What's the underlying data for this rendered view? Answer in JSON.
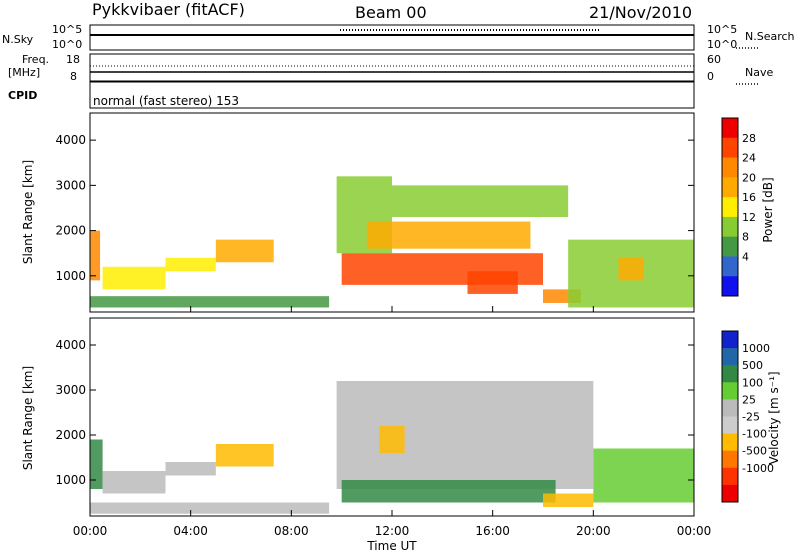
{
  "header": {
    "radar": "Pykkvibaer (fitACF)",
    "beam": "Beam 00",
    "date": "21/Nov/2010"
  },
  "nsky_panel": {
    "left_label": "N.Sky",
    "left_ticks": [
      "10^5",
      "10^0"
    ],
    "right_label": "N.Search",
    "right_ticks": [
      "10^5",
      "10^0"
    ]
  },
  "freq_panel": {
    "left_label_1": "Freq.",
    "left_label_2": "[MHz]",
    "left_ticks": [
      "18",
      "8"
    ],
    "right_label": "Nave",
    "right_ticks": [
      "60",
      "0"
    ]
  },
  "cpid": {
    "label": "CPID",
    "value": "normal (fast stereo) 153"
  },
  "x_axis": {
    "label": "Time UT",
    "ticks": [
      "00:00",
      "04:00",
      "08:00",
      "12:00",
      "16:00",
      "20:00",
      "00:00"
    ]
  },
  "power_colorbar": {
    "label": "Power [dB]",
    "ticks": [
      "28",
      "24",
      "20",
      "16",
      "12",
      "8",
      "4"
    ],
    "colors": [
      "#ee0000",
      "#ff4400",
      "#ff8800",
      "#ffaa00",
      "#ffee00",
      "#88cc33",
      "#449944",
      "#3366cc",
      "#1111ee"
    ]
  },
  "velocity_colorbar": {
    "label": "Velocity  [m s⁻¹]",
    "ticks": [
      "1000",
      "500",
      "100",
      "25",
      "-25",
      "-100",
      "-500",
      "-1000"
    ],
    "colors": [
      "#1122cc",
      "#2266aa",
      "#338844",
      "#66cc33",
      "#bbbbbb",
      "#cccccc",
      "#ffbb00",
      "#ff7700",
      "#ff3300",
      "#ee0000"
    ]
  },
  "chart_data": [
    {
      "type": "heatmap",
      "title": "",
      "xlabel": "Time UT",
      "ylabel": "Slant Range [km]",
      "xlim": [
        0,
        24
      ],
      "ylim": [
        200,
        4600
      ],
      "yticks": [
        "1000",
        "2000",
        "3000",
        "4000"
      ],
      "colorbar_label": "Power [dB]",
      "regions": [
        {
          "t0": 0.0,
          "t1": 0.4,
          "r0": 900,
          "r1": 2000,
          "value": 24
        },
        {
          "t0": 0.5,
          "t1": 3.0,
          "r0": 700,
          "r1": 1200,
          "value": 14
        },
        {
          "t0": 3.0,
          "t1": 5.0,
          "r0": 1100,
          "r1": 1400,
          "value": 14
        },
        {
          "t0": 5.0,
          "t1": 7.3,
          "r0": 1300,
          "r1": 1800,
          "value": 18
        },
        {
          "t0": 0.0,
          "t1": 9.5,
          "r0": 300,
          "r1": 550,
          "value": 8
        },
        {
          "t0": 9.8,
          "t1": 12.0,
          "r0": 1500,
          "r1": 3200,
          "value": 12
        },
        {
          "t0": 10.0,
          "t1": 18.0,
          "r0": 800,
          "r1": 1500,
          "value": 26
        },
        {
          "t0": 11.0,
          "t1": 17.5,
          "r0": 1600,
          "r1": 2200,
          "value": 18
        },
        {
          "t0": 12.0,
          "t1": 19.0,
          "r0": 2300,
          "r1": 3000,
          "value": 12
        },
        {
          "t0": 15.0,
          "t1": 17.0,
          "r0": 600,
          "r1": 1100,
          "value": 28
        },
        {
          "t0": 18.0,
          "t1": 19.5,
          "r0": 400,
          "r1": 700,
          "value": 24
        },
        {
          "t0": 19.0,
          "t1": 24.0,
          "r0": 300,
          "r1": 1800,
          "value": 10
        },
        {
          "t0": 21.0,
          "t1": 22.0,
          "r0": 900,
          "r1": 1400,
          "value": 20
        }
      ]
    },
    {
      "type": "heatmap",
      "title": "",
      "xlabel": "Time UT",
      "ylabel": "Slant Range [km]",
      "xlim": [
        0,
        24
      ],
      "ylim": [
        200,
        4600
      ],
      "yticks": [
        "1000",
        "2000",
        "3000",
        "4000"
      ],
      "colorbar_label": "Velocity [m s⁻¹]",
      "regions": [
        {
          "t0": 0.0,
          "t1": 0.5,
          "r0": 800,
          "r1": 1900,
          "value": 200
        },
        {
          "t0": 0.5,
          "t1": 3.0,
          "r0": 700,
          "r1": 1200,
          "value": 0
        },
        {
          "t0": 3.0,
          "t1": 5.0,
          "r0": 1100,
          "r1": 1400,
          "value": 0
        },
        {
          "t0": 5.0,
          "t1": 7.3,
          "r0": 1300,
          "r1": 1800,
          "value": -300
        },
        {
          "t0": 0.0,
          "t1": 9.5,
          "r0": 250,
          "r1": 500,
          "value": 0
        },
        {
          "t0": 9.8,
          "t1": 20.0,
          "r0": 800,
          "r1": 3200,
          "value": 0
        },
        {
          "t0": 10.0,
          "t1": 18.5,
          "r0": 500,
          "r1": 1000,
          "value": 150
        },
        {
          "t0": 11.5,
          "t1": 12.5,
          "r0": 1600,
          "r1": 2200,
          "value": -300
        },
        {
          "t0": 18.0,
          "t1": 20.0,
          "r0": 400,
          "r1": 700,
          "value": -150
        },
        {
          "t0": 20.0,
          "t1": 24.0,
          "r0": 500,
          "r1": 1700,
          "value": 50
        }
      ]
    }
  ]
}
